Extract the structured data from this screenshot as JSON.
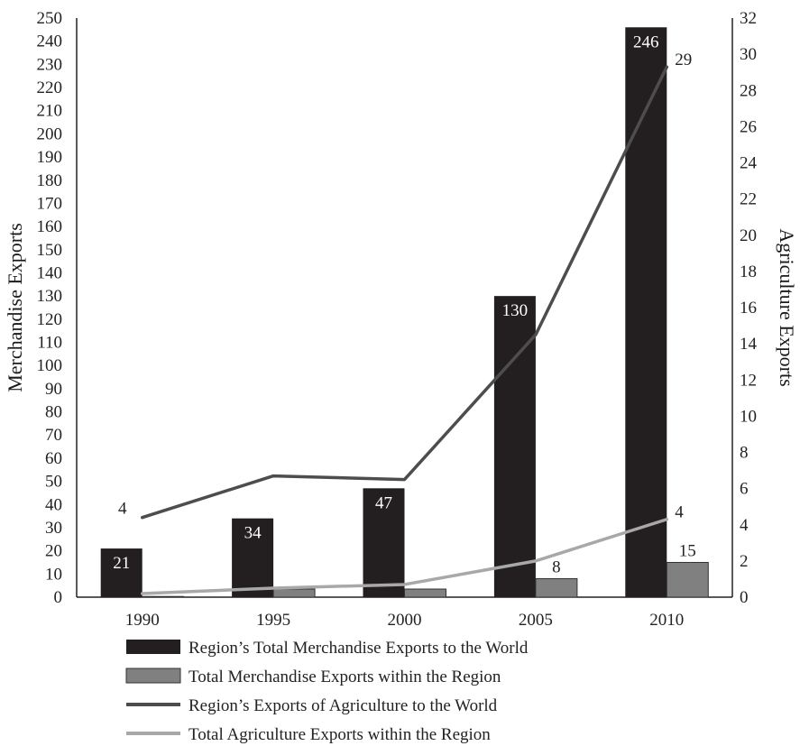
{
  "chart_data": {
    "type": "bar",
    "categories": [
      "1990",
      "1995",
      "2000",
      "2005",
      "2010"
    ],
    "axes": {
      "y_left": {
        "label": "Merchandise Exports",
        "range": [
          0,
          250
        ],
        "step": 10
      },
      "y_right": {
        "label": "Agriculture Exports",
        "range": [
          0,
          32
        ],
        "step": 2
      },
      "x": {
        "label": ""
      }
    },
    "series": [
      {
        "name": "Region’s Total Merchandise Exports to the World",
        "kind": "bar",
        "axis": "left",
        "color": "#231f20",
        "values": [
          21,
          34,
          47,
          130,
          246
        ],
        "labels": [
          "21",
          "34",
          "47",
          "130",
          "246"
        ]
      },
      {
        "name": "Total Merchandise Exports within the Region",
        "kind": "bar",
        "axis": "left",
        "color": "#808080",
        "values": [
          0.3,
          3.5,
          3.5,
          8,
          15
        ],
        "labels": [
          "",
          "",
          "",
          "8",
          "15"
        ]
      },
      {
        "name": "Region’s Exports of Agriculture to the World",
        "kind": "line",
        "axis": "right",
        "color": "#4d4d4d",
        "values": [
          4.4,
          6.7,
          6.5,
          14.5,
          29.3
        ],
        "labels": [
          "4",
          "",
          "",
          "",
          "29"
        ]
      },
      {
        "name": "Total Agriculture Exports within the Region",
        "kind": "line",
        "axis": "right",
        "color": "#a8a8a8",
        "values": [
          0.2,
          0.5,
          0.7,
          2.0,
          4.3
        ],
        "labels": [
          "",
          "",
          "",
          "",
          "4"
        ]
      }
    ],
    "grid": false,
    "legend_position": "bottom"
  }
}
